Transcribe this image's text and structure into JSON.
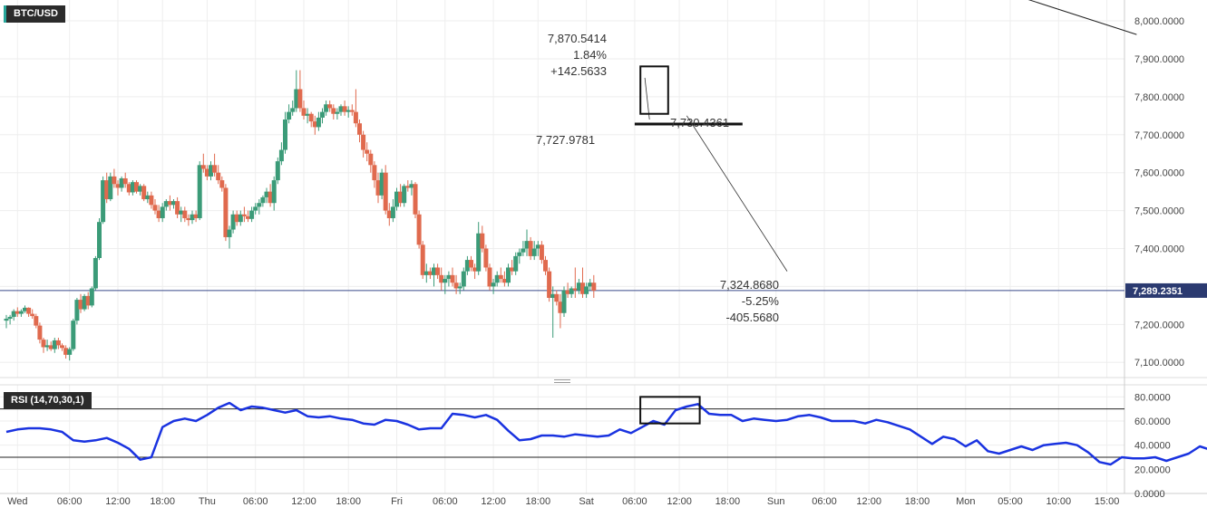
{
  "chart_data": [
    {
      "type": "candlestick",
      "symbol": "BTC/USD",
      "price_axis": {
        "ylim": [
          7060,
          8055
        ],
        "ticks": [
          "8,000.0000",
          "7,900.0000",
          "7,800.0000",
          "7,700.0000",
          "7,600.0000",
          "7,500.0000",
          "7,400.0000",
          "7,300.0000",
          "7,200.0000",
          "7,100.0000"
        ],
        "tick_values": [
          8000,
          7900,
          7800,
          7700,
          7600,
          7500,
          7400,
          7300,
          7200,
          7100
        ],
        "last_price_label": "7,289.2351",
        "last_price": 7289.2351
      },
      "time_axis": {
        "labels": [
          "Wed",
          "06:00",
          "12:00",
          "18:00",
          "Thu",
          "06:00",
          "12:00",
          "18:00",
          "Fri",
          "06:00",
          "12:00",
          "18:00",
          "Sat",
          "06:00",
          "12:00",
          "18:00",
          "Sun",
          "06:00",
          "12:00",
          "18:00",
          "Mon",
          "05:00",
          "10:00",
          "15:00"
        ],
        "label_bar_index": [
          3,
          17,
          30,
          42,
          54,
          67,
          80,
          92,
          105,
          118,
          131,
          143,
          156,
          169,
          181,
          194,
          207,
          220,
          232,
          245,
          258,
          270,
          283,
          296
        ]
      },
      "candles": [
        [
          7210,
          7225,
          7190,
          7215
        ],
        [
          7215,
          7225,
          7200,
          7220
        ],
        [
          7220,
          7240,
          7210,
          7235
        ],
        [
          7235,
          7245,
          7220,
          7228
        ],
        [
          7228,
          7240,
          7220,
          7235
        ],
        [
          7235,
          7250,
          7230,
          7244
        ],
        [
          7244,
          7245,
          7220,
          7228
        ],
        [
          7228,
          7240,
          7215,
          7222
        ],
        [
          7222,
          7228,
          7190,
          7197
        ],
        [
          7197,
          7205,
          7150,
          7160
        ],
        [
          7160,
          7165,
          7125,
          7140
        ],
        [
          7140,
          7160,
          7130,
          7145
        ],
        [
          7145,
          7155,
          7130,
          7135
        ],
        [
          7135,
          7165,
          7125,
          7158
        ],
        [
          7158,
          7165,
          7135,
          7145
        ],
        [
          7145,
          7150,
          7130,
          7138
        ],
        [
          7138,
          7145,
          7110,
          7120
        ],
        [
          7120,
          7140,
          7105,
          7135
        ],
        [
          7135,
          7215,
          7130,
          7210
        ],
        [
          7210,
          7270,
          7200,
          7265
        ],
        [
          7265,
          7280,
          7230,
          7240
        ],
        [
          7240,
          7280,
          7235,
          7275
        ],
        [
          7275,
          7285,
          7240,
          7250
        ],
        [
          7250,
          7300,
          7245,
          7295
        ],
        [
          7295,
          7380,
          7290,
          7375
        ],
        [
          7375,
          7480,
          7370,
          7470
        ],
        [
          7470,
          7590,
          7465,
          7580
        ],
        [
          7580,
          7600,
          7520,
          7530
        ],
        [
          7530,
          7600,
          7525,
          7590
        ],
        [
          7590,
          7610,
          7560,
          7570
        ],
        [
          7570,
          7580,
          7540,
          7560
        ],
        [
          7560,
          7590,
          7550,
          7585
        ],
        [
          7585,
          7600,
          7560,
          7570
        ],
        [
          7570,
          7575,
          7540,
          7548
        ],
        [
          7548,
          7580,
          7540,
          7575
        ],
        [
          7575,
          7580,
          7545,
          7550
        ],
        [
          7550,
          7570,
          7540,
          7565
        ],
        [
          7565,
          7570,
          7525,
          7530
        ],
        [
          7530,
          7550,
          7520,
          7540
        ],
        [
          7540,
          7550,
          7505,
          7515
        ],
        [
          7515,
          7530,
          7490,
          7500
        ],
        [
          7500,
          7515,
          7470,
          7480
        ],
        [
          7480,
          7520,
          7470,
          7510
        ],
        [
          7510,
          7530,
          7500,
          7525
        ],
        [
          7525,
          7540,
          7500,
          7515
        ],
        [
          7515,
          7530,
          7505,
          7525
        ],
        [
          7525,
          7535,
          7480,
          7490
        ],
        [
          7490,
          7510,
          7470,
          7500
        ],
        [
          7500,
          7510,
          7470,
          7480
        ],
        [
          7480,
          7490,
          7460,
          7475
        ],
        [
          7475,
          7500,
          7465,
          7490
        ],
        [
          7490,
          7500,
          7470,
          7480
        ],
        [
          7480,
          7630,
          7475,
          7620
        ],
        [
          7620,
          7650,
          7600,
          7610
        ],
        [
          7610,
          7620,
          7580,
          7590
        ],
        [
          7590,
          7630,
          7580,
          7620
        ],
        [
          7620,
          7650,
          7590,
          7600
        ],
        [
          7600,
          7620,
          7570,
          7580
        ],
        [
          7580,
          7590,
          7550,
          7560
        ],
        [
          7560,
          7570,
          7420,
          7430
        ],
        [
          7430,
          7460,
          7400,
          7450
        ],
        [
          7450,
          7500,
          7440,
          7490
        ],
        [
          7490,
          7500,
          7460,
          7470
        ],
        [
          7470,
          7500,
          7460,
          7490
        ],
        [
          7490,
          7510,
          7470,
          7485
        ],
        [
          7485,
          7500,
          7470,
          7478
        ],
        [
          7478,
          7510,
          7470,
          7500
        ],
        [
          7500,
          7520,
          7490,
          7510
        ],
        [
          7510,
          7530,
          7490,
          7520
        ],
        [
          7520,
          7540,
          7510,
          7535
        ],
        [
          7535,
          7560,
          7520,
          7550
        ],
        [
          7550,
          7570,
          7510,
          7520
        ],
        [
          7520,
          7590,
          7500,
          7580
        ],
        [
          7580,
          7640,
          7570,
          7630
        ],
        [
          7630,
          7680,
          7620,
          7660
        ],
        [
          7660,
          7760,
          7650,
          7740
        ],
        [
          7740,
          7780,
          7730,
          7760
        ],
        [
          7760,
          7790,
          7750,
          7770
        ],
        [
          7770,
          7870,
          7760,
          7820
        ],
        [
          7820,
          7870,
          7760,
          7770
        ],
        [
          7770,
          7790,
          7740,
          7750
        ],
        [
          7750,
          7770,
          7730,
          7755
        ],
        [
          7755,
          7760,
          7720,
          7735
        ],
        [
          7735,
          7750,
          7700,
          7720
        ],
        [
          7720,
          7760,
          7710,
          7745
        ],
        [
          7745,
          7770,
          7730,
          7760
        ],
        [
          7760,
          7790,
          7750,
          7780
        ],
        [
          7780,
          7790,
          7760,
          7770
        ],
        [
          7770,
          7780,
          7740,
          7755
        ],
        [
          7755,
          7770,
          7740,
          7760
        ],
        [
          7760,
          7780,
          7750,
          7775
        ],
        [
          7775,
          7790,
          7750,
          7760
        ],
        [
          7760,
          7775,
          7745,
          7765
        ],
        [
          7765,
          7780,
          7750,
          7760
        ],
        [
          7760,
          7820,
          7720,
          7730
        ],
        [
          7730,
          7740,
          7680,
          7700
        ],
        [
          7700,
          7710,
          7640,
          7660
        ],
        [
          7660,
          7680,
          7630,
          7650
        ],
        [
          7650,
          7660,
          7600,
          7620
        ],
        [
          7620,
          7630,
          7560,
          7580
        ],
        [
          7580,
          7600,
          7520,
          7540
        ],
        [
          7540,
          7610,
          7530,
          7600
        ],
        [
          7600,
          7620,
          7490,
          7500
        ],
        [
          7500,
          7520,
          7460,
          7480
        ],
        [
          7480,
          7530,
          7470,
          7510
        ],
        [
          7510,
          7560,
          7500,
          7550
        ],
        [
          7550,
          7570,
          7510,
          7520
        ],
        [
          7520,
          7570,
          7510,
          7565
        ],
        [
          7565,
          7580,
          7550,
          7560
        ],
        [
          7560,
          7580,
          7540,
          7570
        ],
        [
          7570,
          7575,
          7480,
          7490
        ],
        [
          7490,
          7500,
          7400,
          7410
        ],
        [
          7410,
          7420,
          7320,
          7330
        ],
        [
          7330,
          7360,
          7310,
          7340
        ],
        [
          7340,
          7350,
          7320,
          7330
        ],
        [
          7330,
          7360,
          7300,
          7350
        ],
        [
          7350,
          7360,
          7320,
          7330
        ],
        [
          7330,
          7350,
          7290,
          7310
        ],
        [
          7310,
          7330,
          7280,
          7320
        ],
        [
          7320,
          7340,
          7300,
          7330
        ],
        [
          7330,
          7350,
          7300,
          7310
        ],
        [
          7310,
          7330,
          7280,
          7295
        ],
        [
          7295,
          7310,
          7280,
          7300
        ],
        [
          7300,
          7350,
          7290,
          7340
        ],
        [
          7340,
          7380,
          7330,
          7370
        ],
        [
          7370,
          7380,
          7340,
          7350
        ],
        [
          7350,
          7360,
          7320,
          7340
        ],
        [
          7340,
          7470,
          7330,
          7440
        ],
        [
          7440,
          7460,
          7390,
          7400
        ],
        [
          7400,
          7410,
          7340,
          7350
        ],
        [
          7350,
          7360,
          7290,
          7300
        ],
        [
          7300,
          7320,
          7280,
          7310
        ],
        [
          7310,
          7340,
          7300,
          7330
        ],
        [
          7330,
          7350,
          7310,
          7320
        ],
        [
          7320,
          7340,
          7300,
          7310
        ],
        [
          7310,
          7360,
          7300,
          7350
        ],
        [
          7350,
          7370,
          7330,
          7340
        ],
        [
          7340,
          7390,
          7330,
          7380
        ],
        [
          7380,
          7400,
          7360,
          7390
        ],
        [
          7390,
          7420,
          7380,
          7400
        ],
        [
          7400,
          7450,
          7380,
          7420
        ],
        [
          7420,
          7430,
          7370,
          7380
        ],
        [
          7380,
          7420,
          7370,
          7400
        ],
        [
          7400,
          7420,
          7380,
          7410
        ],
        [
          7410,
          7420,
          7360,
          7370
        ],
        [
          7370,
          7380,
          7330,
          7340
        ],
        [
          7340,
          7350,
          7260,
          7270
        ],
        [
          7270,
          7300,
          7165,
          7280
        ],
        [
          7280,
          7290,
          7250,
          7260
        ],
        [
          7260,
          7280,
          7190,
          7230
        ],
        [
          7230,
          7300,
          7220,
          7290
        ],
        [
          7290,
          7310,
          7270,
          7280
        ],
        [
          7280,
          7300,
          7270,
          7295
        ],
        [
          7295,
          7350,
          7270,
          7290
        ],
        [
          7290,
          7320,
          7280,
          7310
        ],
        [
          7310,
          7350,
          7270,
          7280
        ],
        [
          7280,
          7310,
          7270,
          7300
        ],
        [
          7300,
          7320,
          7290,
          7310
        ],
        [
          7310,
          7330,
          7270,
          7289.2351
        ]
      ],
      "trendlines": [
        {
          "name": "descending-trendline",
          "from": [
            261,
            8100
          ],
          "to": [
            304,
            7964
          ]
        }
      ],
      "levels": [
        {
          "name": "consolidation-level",
          "price": 7728,
          "from": 169,
          "to": 198
        }
      ],
      "annotations": [
        {
          "lines": [
            "7,870.5414",
            "1.84%",
            "+142.5633"
          ],
          "anchor_bar": 171,
          "anchor_price": 7870.5414
        },
        {
          "lines": [
            "7,727.9781"
          ],
          "anchor_bar": 172,
          "anchor_price": 7727.9781
        },
        {
          "lines": [
            "7,730.4361"
          ],
          "anchor_bar": 195,
          "anchor_price": 7730.4361
        },
        {
          "lines": [
            "7,324.8680",
            "-5.25%",
            "-405.5680"
          ],
          "anchor_bar": 240,
          "anchor_price": 7324.868
        }
      ],
      "highlight_box": {
        "from_bar": 172,
        "to_bar": 178,
        "price_low": 7755,
        "price_high": 7880
      }
    },
    {
      "type": "line",
      "indicator": "RSI",
      "label": "RSI (14,70,30,1)",
      "ylim": [
        0,
        90
      ],
      "ticks": [
        "80.0000",
        "60.0000",
        "40.0000",
        "20.0000",
        "0.0000"
      ],
      "tick_values": [
        80,
        60,
        40,
        20,
        0
      ],
      "overbought": 70,
      "oversold": 30,
      "color": "#1a33e0",
      "x_interval": 3,
      "values": [
        51,
        53,
        54,
        54,
        53,
        51,
        44,
        43,
        44,
        46,
        42,
        37,
        28,
        30,
        55,
        60,
        62,
        60,
        65,
        71,
        75,
        69,
        72,
        71,
        69,
        67,
        69,
        64,
        63,
        64,
        62,
        61,
        58,
        57,
        61,
        60,
        57,
        53,
        54,
        54,
        66,
        65,
        63,
        65,
        61,
        52,
        44,
        45,
        48,
        48,
        47,
        49,
        48,
        47,
        48,
        53,
        50,
        55,
        60,
        57,
        69,
        72,
        74,
        66,
        65,
        65,
        60,
        62,
        61,
        60,
        61,
        64,
        65,
        63,
        60,
        60,
        60,
        58,
        61,
        59,
        56,
        53,
        47,
        41,
        47,
        45,
        39,
        44,
        35,
        33,
        36,
        39,
        36,
        40,
        41,
        42,
        40,
        34,
        26,
        24,
        30,
        29,
        29,
        30,
        27,
        30,
        33,
        39,
        36,
        42,
        49,
        45,
        42,
        38,
        36,
        40,
        40,
        42,
        43,
        41,
        45,
        46,
        50,
        51,
        48,
        49,
        52,
        51,
        47,
        47,
        46,
        39,
        38,
        36,
        37,
        33,
        44,
        43,
        44,
        47,
        45,
        47,
        44
      ],
      "highlight_box": {
        "from_index": 57,
        "to_index": 62,
        "low": 58,
        "high": 80
      }
    }
  ]
}
